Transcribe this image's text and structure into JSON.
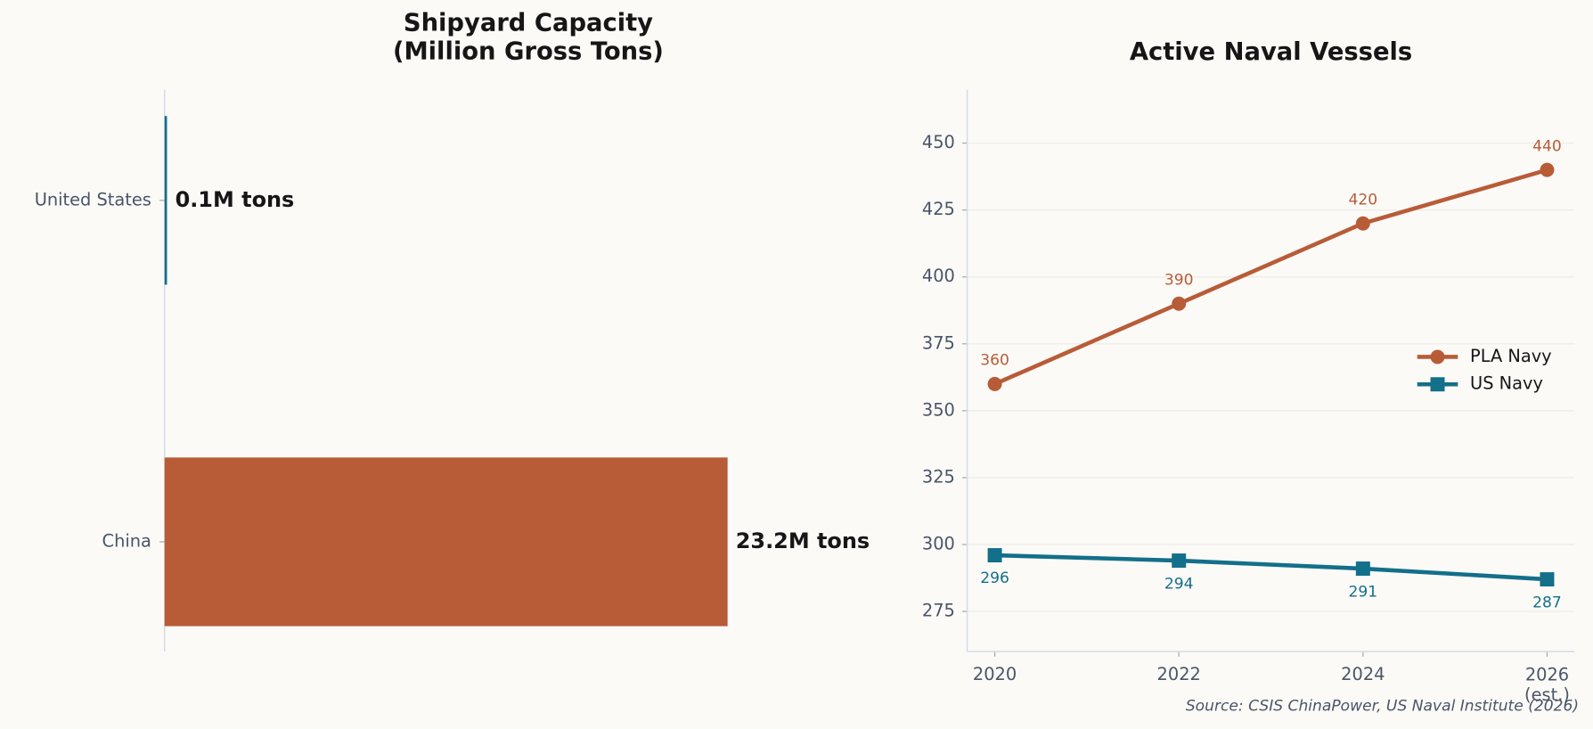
{
  "chart_data": [
    {
      "type": "barh",
      "title": "Shipyard Capacity\n(Million Gross Tons)",
      "categories": [
        "United States",
        "China"
      ],
      "values": [
        0.1,
        23.2
      ],
      "value_labels": [
        "0.1M tons",
        "23.2M tons"
      ],
      "colors": [
        "#136f8a",
        "#b85c38"
      ],
      "xlim": [
        0,
        27.84
      ]
    },
    {
      "type": "line",
      "title": "Active Naval Vessels",
      "x": [
        2020,
        2022,
        2024,
        2026
      ],
      "series": [
        {
          "name": "PLA Navy",
          "color": "#b85c38",
          "marker": "circle",
          "values": [
            360,
            390,
            420,
            440
          ]
        },
        {
          "name": "US Navy",
          "color": "#136f8a",
          "marker": "square",
          "values": [
            296,
            294,
            291,
            287
          ]
        }
      ],
      "xlim": [
        2019.7,
        2026.3
      ],
      "ylim": [
        260,
        470
      ],
      "xticks": [
        2020,
        2022,
        2024,
        {
          "value": 2026,
          "label": "2026\n(est.)"
        }
      ],
      "yticks": [
        275,
        300,
        325,
        350,
        375,
        400,
        425,
        450
      ],
      "grid": true,
      "legend": "right",
      "source": "Source: CSIS ChinaPower, US Naval Institute (2026)"
    }
  ]
}
